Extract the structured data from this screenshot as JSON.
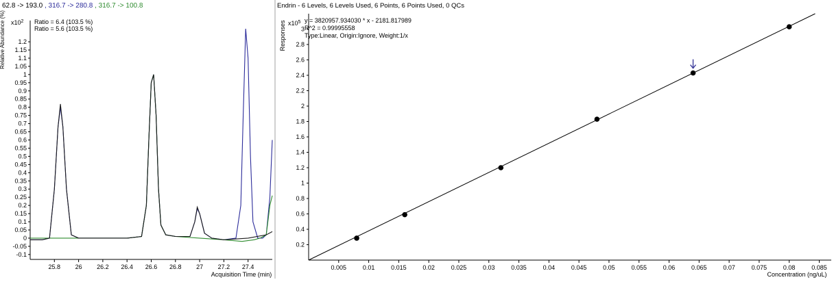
{
  "chromatogram": {
    "header": "62.8 -> 193.0 , 316.7 -> 280.8 , 316.7 -> 100.8",
    "header_parts": [
      {
        "text": "62.8 -> 193.0",
        "color": "#000000"
      },
      {
        "text": " , 316.7 -> 280.8",
        "color": "#2b2b9a"
      },
      {
        "text": " , 316.7 -> 100.8",
        "color": "#2e8b2e"
      }
    ],
    "y_multiplier": "x10",
    "y_exp": "2",
    "ratios": [
      {
        "text": "Ratio = 6.4 (103.5 %)",
        "color": "#2b2b9a"
      },
      {
        "text": "Ratio = 5.6 (103.5 %)",
        "color": "#2e8b2e"
      }
    ],
    "xlabel": "Acquisition Time (min)",
    "ylabel": "Relative Abundance (%)"
  },
  "calibration": {
    "title": "Endrin - 6 Levels, 6 Levels Used, 6 Points, 6 Points Used, 0 QCs",
    "equation": "y = 3820957.934030 * x  - 2181.817989",
    "r2": "R^2 = 0.99995558",
    "type_line": "Type:Linear, Origin:Ignore, Weight:1/x",
    "y_multiplier": "x10",
    "y_exp": "5",
    "ylabel": "Responses",
    "xlabel": "Concentration (ng/uL)"
  },
  "chart_data": [
    {
      "type": "line",
      "name": "chromatogram",
      "xlim": [
        25.6,
        27.6
      ],
      "ylim": [
        -0.13,
        1.33
      ],
      "x_ticks": [
        25.8,
        26.0,
        26.2,
        26.4,
        26.6,
        26.8,
        27.0,
        27.2,
        27.4
      ],
      "x_tick_labels": [
        "25.8",
        "26",
        "26.2",
        "26.4",
        "26.6",
        "26.8",
        "27",
        "27.2",
        "27.4"
      ],
      "y_ticks": [
        -0.1,
        -0.05,
        0,
        0.05,
        0.1,
        0.15,
        0.2,
        0.25,
        0.3,
        0.35,
        0.4,
        0.45,
        0.5,
        0.55,
        0.6,
        0.65,
        0.7,
        0.75,
        0.8,
        0.85,
        0.9,
        0.95,
        1,
        1.05,
        1.1,
        1.15,
        1.2
      ],
      "y_tick_labels": [
        "-0.1",
        "-0.05",
        "0",
        "0.05",
        "0.1",
        "0.15",
        "0.2",
        "0.25",
        "0.3",
        "0.35",
        "0.4",
        "0.45",
        "0.5",
        "0.55",
        "0.6",
        "0.65",
        "0.7",
        "0.75",
        "0.8",
        "0.85",
        "0.9",
        "0.95",
        "1",
        "1.05",
        "1.1",
        "1.15",
        "1.2"
      ],
      "series": [
        {
          "color": "#2b2b9a",
          "x": [
            25.6,
            25.7,
            25.76,
            25.8,
            25.83,
            25.85,
            25.87,
            25.9,
            25.94,
            26.0,
            26.2,
            26.4,
            26.52,
            26.56,
            26.58,
            26.6,
            26.62,
            26.64,
            26.66,
            26.68,
            26.72,
            26.8,
            26.92,
            26.96,
            26.98,
            27.0,
            27.04,
            27.1,
            27.2,
            27.3,
            27.34,
            27.36,
            27.38,
            27.4,
            27.42,
            27.44,
            27.48,
            27.52,
            27.55,
            27.58,
            27.6
          ],
          "y": [
            -0.01,
            -0.01,
            0.0,
            0.3,
            0.68,
            0.8,
            0.68,
            0.3,
            0.02,
            0.0,
            0.0,
            0.0,
            0.01,
            0.2,
            0.6,
            0.95,
            1.0,
            0.75,
            0.3,
            0.08,
            0.02,
            0.01,
            0.01,
            0.1,
            0.18,
            0.15,
            0.03,
            0.0,
            -0.01,
            0.0,
            0.2,
            0.75,
            1.28,
            1.1,
            0.5,
            0.1,
            0.0,
            0.0,
            0.02,
            0.25,
            0.6
          ]
        },
        {
          "color": "#2e8b2e",
          "x": [
            25.6,
            25.8,
            26.0,
            26.2,
            26.4,
            26.52,
            26.56,
            26.58,
            26.6,
            26.62,
            26.64,
            26.66,
            26.68,
            26.72,
            26.8,
            27.0,
            27.2,
            27.35,
            27.45,
            27.5,
            27.55,
            27.58,
            27.6
          ],
          "y": [
            0.0,
            0.0,
            0.0,
            0.0,
            0.0,
            0.01,
            0.2,
            0.6,
            0.95,
            1.0,
            0.75,
            0.3,
            0.08,
            0.02,
            0.01,
            0.0,
            -0.01,
            -0.02,
            -0.01,
            0.0,
            0.02,
            0.2,
            0.26
          ]
        },
        {
          "color": "#1a1a1a",
          "x": [
            25.6,
            25.7,
            25.76,
            25.8,
            25.83,
            25.85,
            25.87,
            25.9,
            25.94,
            26.0,
            26.2,
            26.4,
            26.52,
            26.56,
            26.58,
            26.6,
            26.62,
            26.64,
            26.66,
            26.68,
            26.72,
            26.8,
            26.92,
            26.96,
            26.98,
            27.0,
            27.04,
            27.1,
            27.2,
            27.4,
            27.55,
            27.6
          ],
          "y": [
            -0.01,
            -0.01,
            0.0,
            0.3,
            0.68,
            0.82,
            0.68,
            0.3,
            0.02,
            0.0,
            0.0,
            0.0,
            0.01,
            0.2,
            0.6,
            0.95,
            1.0,
            0.75,
            0.3,
            0.08,
            0.02,
            0.01,
            0.01,
            0.1,
            0.19,
            0.15,
            0.03,
            0.0,
            -0.01,
            0.0,
            0.02,
            0.04
          ]
        }
      ]
    },
    {
      "type": "scatter",
      "name": "calibration-curve",
      "xlim": [
        0.0,
        0.087
      ],
      "ylim": [
        0.0,
        3.2
      ],
      "x_ticks": [
        0.005,
        0.01,
        0.015,
        0.02,
        0.025,
        0.03,
        0.035,
        0.04,
        0.045,
        0.05,
        0.055,
        0.06,
        0.065,
        0.07,
        0.075,
        0.08,
        0.085
      ],
      "x_tick_labels": [
        "0.005",
        "0.01",
        "0.015",
        "0.02",
        "0.025",
        "0.03",
        "0.035",
        "0.04",
        "0.045",
        "0.05",
        "0.055",
        "0.06",
        "0.065",
        "0.07",
        "0.075",
        "0.08",
        "0.085"
      ],
      "y_ticks": [
        0.2,
        0.4,
        0.6,
        0.8,
        1.0,
        1.2,
        1.4,
        1.6,
        1.8,
        2.0,
        2.2,
        2.4,
        2.6,
        2.8,
        3.0
      ],
      "y_tick_labels": [
        "0.2",
        "0.4",
        "0.6",
        "0.8",
        "1",
        "1.2",
        "1.4",
        "1.6",
        "1.8",
        "2",
        "2.2",
        "2.4",
        "2.6",
        "2.8",
        "3"
      ],
      "points": [
        {
          "x": 0.008,
          "y": 0.285
        },
        {
          "x": 0.016,
          "y": 0.59
        },
        {
          "x": 0.032,
          "y": 1.2
        },
        {
          "x": 0.048,
          "y": 1.83
        },
        {
          "x": 0.064,
          "y": 2.43
        },
        {
          "x": 0.08,
          "y": 3.03
        }
      ],
      "fit": {
        "slope": 38.20957934,
        "intercept": -0.02181817989
      },
      "highlighted_point_index": 4
    }
  ]
}
